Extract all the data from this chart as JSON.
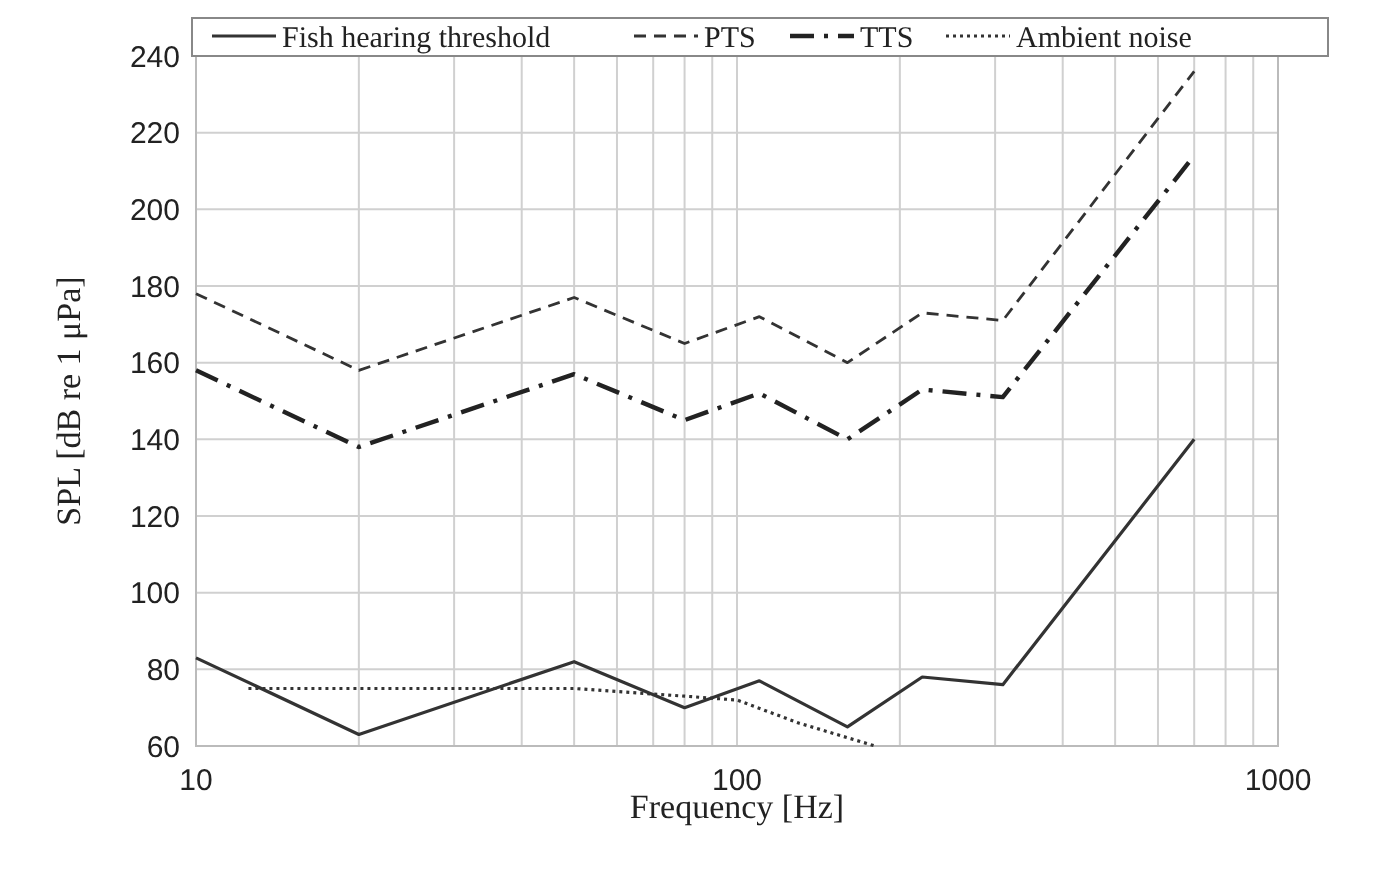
{
  "chart_data": {
    "type": "line",
    "xlabel": "Frequency  [Hz]",
    "ylabel": "SPL [dB re 1 μPa]",
    "log": "x",
    "grid": true,
    "legend": "top",
    "xlim": [
      10,
      1000
    ],
    "xticks": [
      10,
      100,
      1000
    ],
    "ylim": [
      60,
      240
    ],
    "yticks": [
      60,
      80,
      100,
      120,
      140,
      160,
      180,
      200,
      220,
      240
    ],
    "series": [
      {
        "name": "Fish hearing threshold",
        "color": "#333333",
        "line_style": "solid",
        "x": [
          10,
          20,
          50,
          80,
          110,
          160,
          220,
          310,
          700
        ],
        "values": [
          83,
          63,
          82,
          70,
          77,
          65,
          78,
          76,
          140
        ]
      },
      {
        "name": "PTS",
        "color": "#333333",
        "line_style": "dashed",
        "x": [
          10,
          20,
          50,
          80,
          110,
          160,
          220,
          310,
          700
        ],
        "values": [
          178,
          158,
          177,
          165,
          172,
          160,
          173,
          171,
          236
        ]
      },
      {
        "name": "TTS",
        "color": "#222222",
        "line_style": "dashdot",
        "x": [
          10,
          20,
          50,
          80,
          110,
          160,
          220,
          310,
          700
        ],
        "values": [
          158,
          138,
          157,
          145,
          152,
          140,
          153,
          151,
          214
        ]
      },
      {
        "name": "Ambient noise",
        "color": "#333333",
        "line_style": "dotted",
        "x": [
          12.5,
          50,
          80,
          100,
          130,
          180
        ],
        "values": [
          75,
          75,
          73,
          72,
          66,
          60
        ]
      }
    ]
  }
}
